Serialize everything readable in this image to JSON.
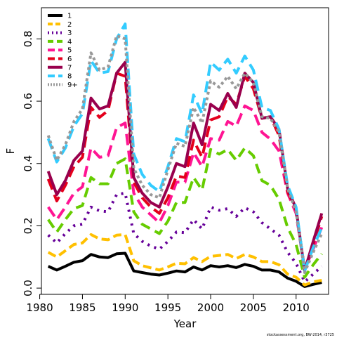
{
  "credit": "stockassessment.org, BW-2014, r3725",
  "colors": {
    "axis": "#000000",
    "background": "#ffffff"
  },
  "chart_data": {
    "type": "line",
    "xlabel": "Year",
    "ylabel": "F",
    "xlim": [
      1980.2,
      2013.8
    ],
    "ylim": [
      -0.02,
      0.9
    ],
    "xticks": [
      1980,
      1985,
      1990,
      1995,
      2000,
      2005,
      2010
    ],
    "xtick_labels": [
      "1980",
      "1985",
      "1990",
      "1995",
      "2000",
      "2005",
      "2010"
    ],
    "yticks": [
      0.0,
      0.2,
      0.4,
      0.6,
      0.8
    ],
    "ytick_labels": [
      "0.0",
      "0.2",
      "0.4",
      "0.6",
      "0.8"
    ],
    "grid": false,
    "legend_position": "top-left",
    "x": [
      1981,
      1982,
      1983,
      1984,
      1985,
      1986,
      1987,
      1988,
      1989,
      1990,
      1991,
      1992,
      1993,
      1994,
      1995,
      1996,
      1997,
      1998,
      1999,
      2000,
      2001,
      2002,
      2003,
      2004,
      2005,
      2006,
      2007,
      2008,
      2009,
      2010,
      2011,
      2012,
      2013
    ],
    "series": [
      {
        "name": "1",
        "color": "#000000",
        "dash": "",
        "values": [
          0.07,
          0.058,
          0.07,
          0.083,
          0.088,
          0.108,
          0.1,
          0.098,
          0.11,
          0.112,
          0.055,
          0.05,
          0.045,
          0.042,
          0.048,
          0.055,
          0.052,
          0.068,
          0.058,
          0.072,
          0.068,
          0.072,
          0.066,
          0.076,
          0.07,
          0.058,
          0.058,
          0.052,
          0.032,
          0.022,
          0.005,
          0.012,
          0.018
        ]
      },
      {
        "name": "2",
        "color": "#ffc000",
        "dash": "12,6",
        "values": [
          0.115,
          0.1,
          0.12,
          0.14,
          0.145,
          0.172,
          0.158,
          0.155,
          0.17,
          0.172,
          0.088,
          0.072,
          0.065,
          0.058,
          0.068,
          0.08,
          0.078,
          0.098,
          0.085,
          0.102,
          0.105,
          0.108,
          0.095,
          0.108,
          0.1,
          0.085,
          0.085,
          0.075,
          0.045,
          0.035,
          0.01,
          0.02,
          0.025
        ]
      },
      {
        "name": "3",
        "color": "#660099",
        "dash": "3,7",
        "values": [
          0.17,
          0.145,
          0.175,
          0.2,
          0.205,
          0.26,
          0.248,
          0.245,
          0.3,
          0.305,
          0.175,
          0.15,
          0.135,
          0.125,
          0.15,
          0.18,
          0.178,
          0.22,
          0.19,
          0.26,
          0.25,
          0.255,
          0.23,
          0.258,
          0.245,
          0.21,
          0.19,
          0.17,
          0.115,
          0.08,
          0.02,
          0.045,
          0.07
        ]
      },
      {
        "name": "4",
        "color": "#66cc00",
        "dash": "14,8",
        "values": [
          0.22,
          0.18,
          0.22,
          0.255,
          0.265,
          0.355,
          0.335,
          0.335,
          0.4,
          0.415,
          0.245,
          0.205,
          0.19,
          0.175,
          0.215,
          0.275,
          0.275,
          0.355,
          0.315,
          0.445,
          0.43,
          0.445,
          0.41,
          0.45,
          0.425,
          0.345,
          0.33,
          0.285,
          0.195,
          0.14,
          0.035,
          0.075,
          0.11
        ]
      },
      {
        "name": "5",
        "color": "#ff1493",
        "dash": "16,8",
        "values": [
          0.26,
          0.22,
          0.26,
          0.305,
          0.325,
          0.45,
          0.42,
          0.425,
          0.515,
          0.53,
          0.305,
          0.26,
          0.235,
          0.21,
          0.265,
          0.34,
          0.34,
          0.435,
          0.39,
          0.48,
          0.475,
          0.535,
          0.52,
          0.585,
          0.57,
          0.5,
          0.478,
          0.44,
          0.305,
          0.24,
          0.06,
          0.125,
          0.195
        ]
      },
      {
        "name": "6",
        "color": "#e4001c",
        "dash": "16,8",
        "values": [
          0.35,
          0.28,
          0.33,
          0.39,
          0.42,
          0.58,
          0.548,
          0.57,
          0.69,
          0.68,
          0.34,
          0.29,
          0.26,
          0.24,
          0.29,
          0.36,
          0.355,
          0.475,
          0.42,
          0.54,
          0.55,
          0.615,
          0.59,
          0.68,
          0.64,
          0.545,
          0.55,
          0.49,
          0.31,
          0.25,
          0.06,
          0.14,
          0.23
        ]
      },
      {
        "name": "7",
        "color": "#99004d",
        "dash": "",
        "values": [
          0.375,
          0.3,
          0.345,
          0.41,
          0.44,
          0.61,
          0.575,
          0.585,
          0.69,
          0.725,
          0.355,
          0.305,
          0.275,
          0.26,
          0.325,
          0.4,
          0.39,
          0.53,
          0.46,
          0.59,
          0.57,
          0.625,
          0.58,
          0.69,
          0.66,
          0.545,
          0.55,
          0.51,
          0.32,
          0.255,
          0.055,
          0.15,
          0.24
        ]
      },
      {
        "name": "8",
        "color": "#33ccff",
        "dash": "16,8",
        "values": [
          0.48,
          0.405,
          0.45,
          0.52,
          0.56,
          0.73,
          0.69,
          0.695,
          0.8,
          0.848,
          0.43,
          0.365,
          0.33,
          0.31,
          0.39,
          0.48,
          0.47,
          0.62,
          0.56,
          0.725,
          0.7,
          0.735,
          0.69,
          0.745,
          0.7,
          0.58,
          0.57,
          0.51,
          0.33,
          0.26,
          0.055,
          0.13,
          0.195
        ]
      },
      {
        "name": "9+",
        "color": "#999999",
        "dash": "4,4",
        "values": [
          0.49,
          0.41,
          0.46,
          0.535,
          0.575,
          0.755,
          0.7,
          0.71,
          0.81,
          0.8,
          0.385,
          0.33,
          0.3,
          0.29,
          0.38,
          0.465,
          0.455,
          0.58,
          0.53,
          0.665,
          0.645,
          0.68,
          0.64,
          0.69,
          0.66,
          0.55,
          0.545,
          0.5,
          0.32,
          0.245,
          0.05,
          0.115,
          0.175
        ]
      }
    ]
  }
}
